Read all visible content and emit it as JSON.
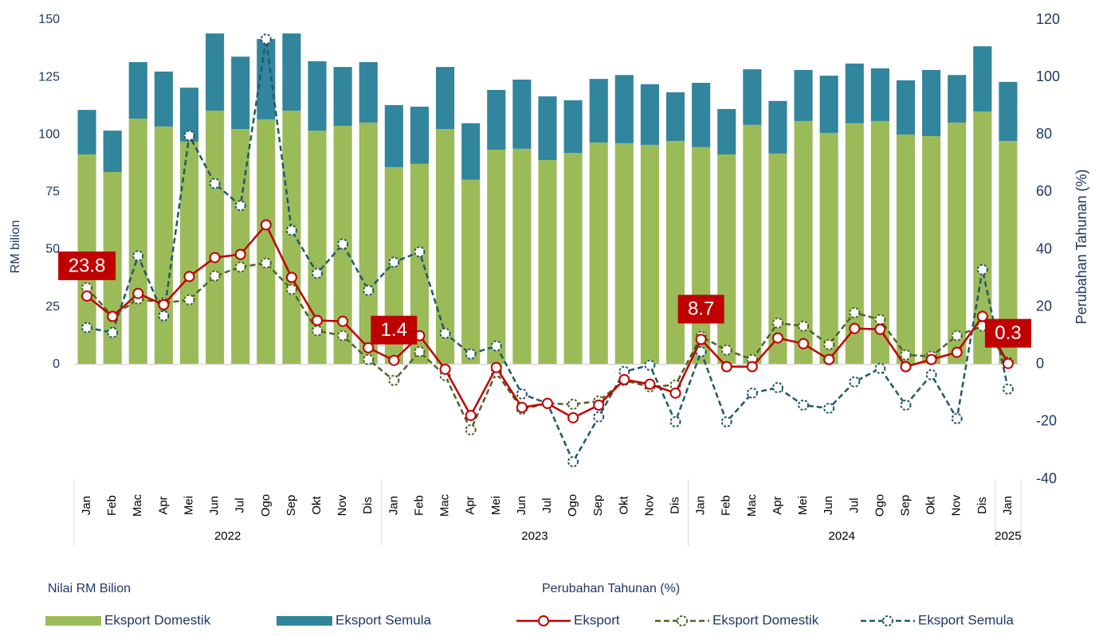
{
  "chart_data": {
    "type": "bar_line",
    "ylabel": "RM bilion",
    "y2label": "Perubahan Tahunan (%)",
    "legend_groups": [
      "Nilai RM Bilion",
      "Perubahan Tahunan (%)"
    ],
    "categories": [
      "Jan",
      "Feb",
      "Mac",
      "Apr",
      "Mei",
      "Jun",
      "Jul",
      "Ogo",
      "Sep",
      "Okt",
      "Nov",
      "Dis",
      "Jan",
      "Feb",
      "Mac",
      "Apr",
      "Mei",
      "Jun",
      "Jul",
      "Ogo",
      "Sep",
      "Okt",
      "Nov",
      "Dis",
      "Jan",
      "Feb",
      "Mac",
      "Apr",
      "Mei",
      "Jun",
      "Jul",
      "Ogo",
      "Sep",
      "Okt",
      "Nov",
      "Dis",
      "Jan"
    ],
    "years": [
      "2022",
      "2023",
      "2024",
      "2025"
    ],
    "ylim": [
      -50,
      150
    ],
    "yticks": [
      0,
      25,
      50,
      75,
      100,
      125,
      150
    ],
    "y2lim": [
      -40,
      120
    ],
    "y2ticks": [
      -40,
      -20,
      0,
      20,
      40,
      60,
      80,
      100,
      120
    ],
    "series": [
      {
        "name": "Eksport Domestik",
        "type": "bar",
        "color": "#9bbb59",
        "values": [
          91.4,
          83.8,
          107,
          103.6,
          97,
          110.5,
          102.5,
          106.7,
          110.5,
          101.8,
          103.9,
          105.3,
          85.9,
          87.3,
          102.5,
          80.4,
          93.5,
          93.9,
          89,
          92.1,
          96.6,
          96.3,
          95.6,
          97.3,
          94.6,
          91.4,
          104.3,
          91.8,
          106,
          100.8,
          105,
          106,
          100.1,
          99.4,
          105.3,
          110.1,
          97.3
        ]
      },
      {
        "name": "Eksport Semula",
        "type": "bar",
        "color": "#31859c",
        "values": [
          19.4,
          18,
          24.6,
          23.9,
          23.5,
          33.6,
          31.5,
          35,
          33.6,
          30.2,
          25.6,
          26.3,
          27,
          24.9,
          27,
          24.6,
          26,
          30.1,
          27.7,
          22.9,
          27.7,
          29.7,
          26.4,
          21.2,
          28,
          19.8,
          24.2,
          22.9,
          22.2,
          24.9,
          26,
          22.9,
          23.6,
          28.8,
          20.7,
          28.4,
          25.7
        ]
      },
      {
        "name": "Eksport",
        "type": "line",
        "axis": "y2",
        "color": "#c00000",
        "dashed": false,
        "values": [
          23.8,
          16.7,
          24.7,
          20.8,
          30.6,
          37.2,
          38.3,
          48.6,
          30.3,
          15.3,
          15,
          5.8,
          1.4,
          10,
          -1.7,
          -17.8,
          -1.1,
          -15,
          -13.6,
          -18.6,
          -14.2,
          -5.3,
          -6.9,
          -10,
          8.7,
          -0.8,
          -0.8,
          9.2,
          7.2,
          1.7,
          12.5,
          12.2,
          -0.8,
          1.7,
          4.2,
          16.7,
          0.3
        ],
        "value_labels": [
          "23.8",
          null,
          null,
          null,
          null,
          null,
          null,
          null,
          null,
          null,
          null,
          null,
          "1.4",
          null,
          null,
          null,
          null,
          null,
          null,
          null,
          null,
          null,
          null,
          null,
          "8.7",
          null,
          null,
          null,
          null,
          null,
          null,
          null,
          null,
          null,
          null,
          null,
          "0.3"
        ]
      },
      {
        "name": "Eksport Domestik",
        "type": "line",
        "axis": "y2",
        "color": "#4f6228",
        "dashed": true,
        "values": [
          26.7,
          16.7,
          22.8,
          21.4,
          22.5,
          30.8,
          33.9,
          35.3,
          26.1,
          11.7,
          10,
          1.7,
          -5.6,
          4.4,
          -3.9,
          -22.8,
          -2.8,
          -15.6,
          -13.6,
          -13.9,
          -12.8,
          -5.6,
          -7.8,
          -7.2,
          9.7,
          5,
          1.7,
          14.4,
          13.3,
          6.9,
          18,
          15.6,
          3.3,
          2.8,
          10,
          13.3,
          0.8
        ]
      },
      {
        "name": "Eksport Semula",
        "type": "line",
        "axis": "y2",
        "color": "#215968",
        "dashed": true,
        "values": [
          12.8,
          11.1,
          37.8,
          16.9,
          79.7,
          63,
          55.3,
          113.3,
          46.7,
          31.7,
          41.9,
          25.8,
          35.6,
          39.2,
          10.8,
          3.6,
          6.4,
          -10.3,
          -13.6,
          -33.9,
          -18.3,
          -2.5,
          -0.3,
          -20,
          4.4,
          -20,
          -10,
          -8.1,
          -14.2,
          -15.3,
          -6.1,
          -1.4,
          -14.2,
          -3.6,
          -18.9,
          33,
          -8.6
        ]
      }
    ]
  }
}
